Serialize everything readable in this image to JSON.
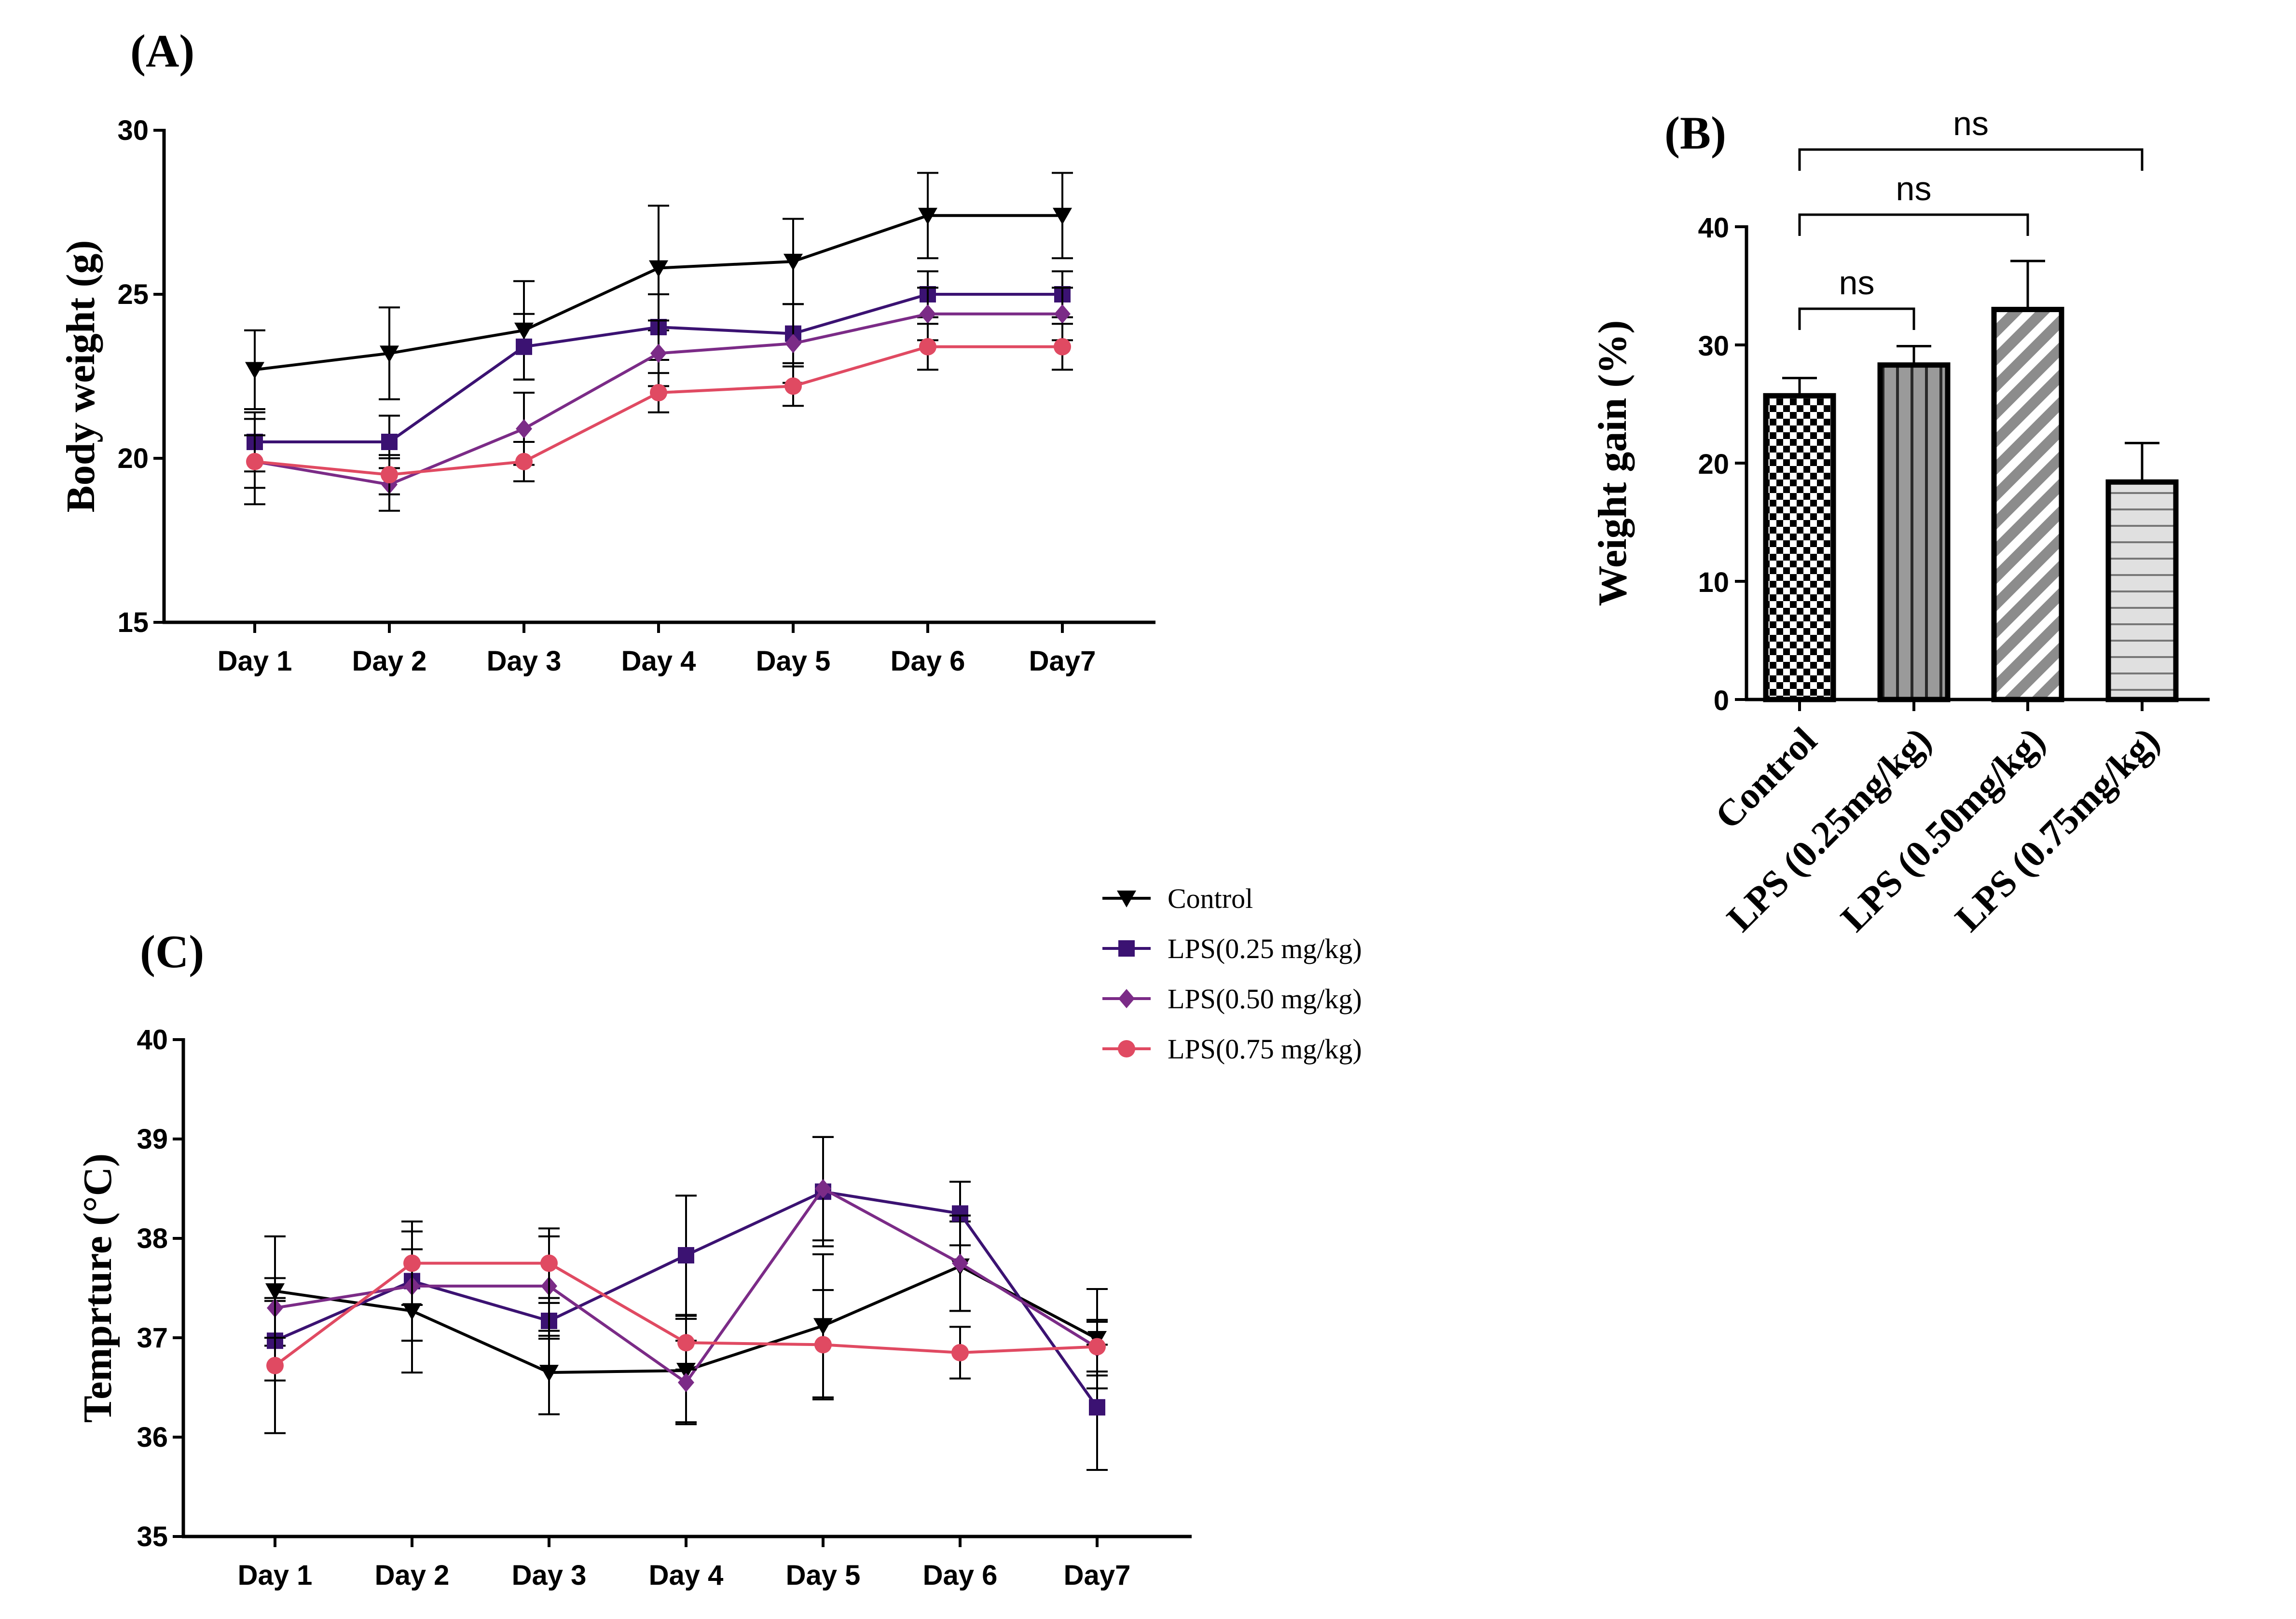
{
  "panels": {
    "a_label": "(A)",
    "b_label": "(B)",
    "c_label": "(C)"
  },
  "legend": {
    "items": [
      {
        "label": "Control",
        "color": "#000000",
        "marker": "triangle-down"
      },
      {
        "label": "LPS(0.25 mg/kg)",
        "color": "#3b1272",
        "marker": "square"
      },
      {
        "label": "LPS(0.50 mg/kg)",
        "color": "#7b2b87",
        "marker": "diamond"
      },
      {
        "label": "LPS(0.75 mg/kg)",
        "color": "#e04a62",
        "marker": "circle"
      }
    ]
  },
  "chart_data": [
    {
      "id": "A",
      "type": "line",
      "title": "",
      "xlabel": "",
      "ylabel": "Body weight (g)",
      "categories": [
        "Day 1",
        "Day 2",
        "Day 3",
        "Day 4",
        "Day 5",
        "Day 6",
        "Day7"
      ],
      "ylim": [
        15,
        30
      ],
      "yticks": [
        15,
        20,
        25,
        30
      ],
      "series": [
        {
          "name": "Control",
          "color": "#000000",
          "marker": "triangle-down",
          "values": [
            22.7,
            23.2,
            23.9,
            25.8,
            26.0,
            27.4,
            27.4
          ],
          "errors": [
            1.2,
            1.4,
            1.5,
            1.9,
            1.3,
            1.3,
            1.3
          ]
        },
        {
          "name": "LPS(0.25 mg/kg)",
          "color": "#3b1272",
          "marker": "square",
          "values": [
            20.5,
            20.5,
            23.4,
            24.0,
            23.8,
            25.0,
            25.0
          ],
          "errors": [
            0.9,
            0.8,
            1.0,
            1.0,
            0.9,
            0.7,
            0.7
          ]
        },
        {
          "name": "LPS(0.50 mg/kg)",
          "color": "#7b2b87",
          "marker": "diamond",
          "values": [
            19.9,
            19.2,
            20.9,
            23.2,
            23.5,
            24.4,
            24.4
          ],
          "errors": [
            1.3,
            0.8,
            1.1,
            1.0,
            1.2,
            0.8,
            0.8
          ]
        },
        {
          "name": "LPS(0.75 mg/kg)",
          "color": "#e04a62",
          "marker": "circle",
          "values": [
            19.9,
            19.5,
            19.9,
            22.0,
            22.2,
            23.4,
            23.4
          ],
          "errors": [
            0.8,
            0.6,
            0.6,
            0.6,
            0.6,
            0.7,
            0.7
          ]
        }
      ]
    },
    {
      "id": "B",
      "type": "bar",
      "title": "",
      "xlabel": "",
      "ylabel": "Weight gain (%)",
      "categories": [
        "Control",
        "LPS (0.25mg/kg)",
        "LPS (0.50mg/kg)",
        "LPS (0.75mg/kg)"
      ],
      "values": [
        25.7,
        28.3,
        33.0,
        18.4
      ],
      "errors": [
        1.5,
        1.6,
        4.1,
        3.3
      ],
      "patterns": [
        "checker",
        "vertical-stripes",
        "diagonal-stripes",
        "horizontal-stripes"
      ],
      "ylim": [
        0,
        40
      ],
      "yticks": [
        0,
        10,
        20,
        30,
        40
      ],
      "annotations": [
        {
          "from": "Control",
          "to": "LPS (0.25mg/kg)",
          "text": "ns"
        },
        {
          "from": "Control",
          "to": "LPS (0.50mg/kg)",
          "text": "ns"
        },
        {
          "from": "Control",
          "to": "LPS (0.75mg/kg)",
          "text": "ns"
        }
      ]
    },
    {
      "id": "C",
      "type": "line",
      "title": "",
      "xlabel": "",
      "ylabel": "Temprture (°C)",
      "categories": [
        "Day 1",
        "Day 2",
        "Day 3",
        "Day 4",
        "Day 5",
        "Day 6",
        "Day7"
      ],
      "ylim": [
        35,
        40
      ],
      "yticks": [
        35,
        36,
        37,
        38,
        39,
        40
      ],
      "series": [
        {
          "name": "Control",
          "color": "#000000",
          "marker": "triangle-down",
          "values": [
            37.47,
            37.27,
            36.65,
            36.67,
            37.12,
            37.72,
            36.99
          ],
          "errors": [
            0.55,
            0.62,
            0.42,
            0.52,
            0.72,
            0.45,
            0.5
          ]
        },
        {
          "name": "LPS(0.25 mg/kg)",
          "color": "#3b1272",
          "marker": "square",
          "values": [
            36.97,
            37.57,
            37.17,
            37.83,
            38.47,
            38.25,
            36.3
          ],
          "errors": [
            0.4,
            0.6,
            0.18,
            0.6,
            0.55,
            0.32,
            0.63
          ]
        },
        {
          "name": "LPS(0.50 mg/kg)",
          "color": "#7b2b87",
          "marker": "diamond",
          "values": [
            37.3,
            37.52,
            37.52,
            36.55,
            38.5,
            37.75,
            36.9
          ],
          "errors": [
            0.3,
            0.55,
            0.5,
            0.42,
            0.52,
            0.48,
            0.28
          ]
        },
        {
          "name": "LPS(0.75 mg/kg)",
          "color": "#e04a62",
          "marker": "circle",
          "values": [
            36.72,
            37.75,
            37.75,
            36.95,
            36.93,
            36.85,
            36.91
          ],
          "errors": [
            0.68,
            0.42,
            0.35,
            0.27,
            0.55,
            0.26,
            0.25
          ]
        }
      ]
    }
  ]
}
